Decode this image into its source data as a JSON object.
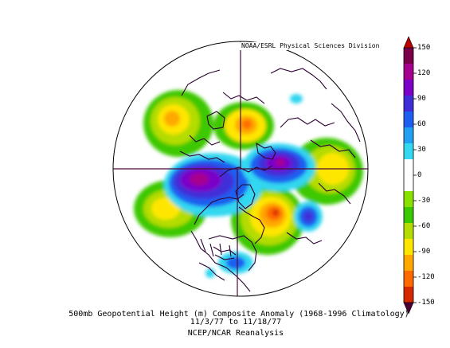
{
  "credit": "NOAA/ESRL Physical Sciences Division",
  "caption": {
    "line1": "500mb Geopotential Height (m) Composite Anomaly (1968-1996 Climatology)",
    "line2": "11/3/77  to 11/18/77",
    "line3": "NCEP/NCAR Reanalysis"
  },
  "colorbar": {
    "ticks": [
      "150",
      "120",
      "90",
      "60",
      "30",
      "0",
      "-30",
      "-60",
      "-90",
      "-120",
      "-150"
    ],
    "colors": [
      "#7a004a",
      "#a8008e",
      "#7a00c8",
      "#3f2ed8",
      "#1e5ef0",
      "#1fa0f0",
      "#33d7f0",
      "#ffffff",
      "#ffffff",
      "#8ae000",
      "#3cc800",
      "#b4dc00",
      "#ffe600",
      "#ffa800",
      "#ff6a00",
      "#d52800"
    ]
  },
  "colors": {
    "coast": "#2d0033",
    "frame": "#4b0a3a"
  }
}
